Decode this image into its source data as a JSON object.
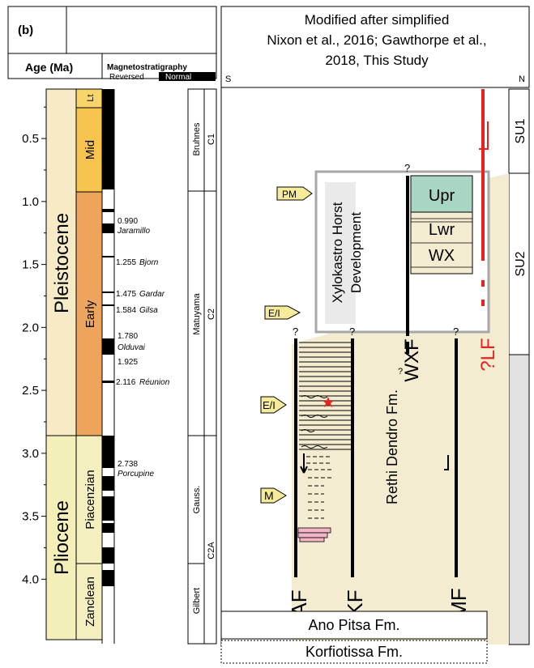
{
  "panel_label": "(b)",
  "header": {
    "age_label": "Age (Ma)",
    "magneto_label": "Magnetostratigraphy",
    "reversed_label": "Reversed",
    "normal_label": "Normal",
    "source_lines": [
      "Modified after simplified",
      "Nixon et al., 2016; Gawthorpe et al.,",
      "2018, This Study"
    ],
    "south_label": "S",
    "north_label": "N"
  },
  "age_ticks": [
    "0.5",
    "1.0",
    "1.5",
    "2.0",
    "2.5",
    "3.0",
    "3.5",
    "4.0"
  ],
  "epochs": {
    "pleistocene": "Pleistocene",
    "pliocene": "Pliocene"
  },
  "stages": {
    "lt": "Lt",
    "mid": "Mid",
    "early": "Early",
    "piacenzian": "Piacenzian",
    "zanclean": "Zanclean"
  },
  "chron_events": [
    {
      "age": "0.990",
      "name": "Jaramillo"
    },
    {
      "age": "1.255",
      "name": "Bjorn"
    },
    {
      "age": "1.475",
      "name": "Gardar"
    },
    {
      "age": "1.584",
      "name": "Gilsa"
    },
    {
      "age": "1.780",
      "name": "Olduvai"
    },
    {
      "age": "1.925",
      "name": ""
    },
    {
      "age": "2.116",
      "name": "Réunion"
    },
    {
      "age": "2.738",
      "name": "Porcupine"
    }
  ],
  "chrons": {
    "bruhnes": "Bruhnes",
    "c1": "C1",
    "matuyama": "Matuyama",
    "c2": "C2",
    "gauss": "Gauss.",
    "c2a": "C2A",
    "gilbert": "Gilbert"
  },
  "faults": {
    "af": "AF",
    "kf": "KF",
    "mf": "MF",
    "wxf": "WXF",
    "lf": "?LF"
  },
  "formations": {
    "rethi": "Rethi Dendro Fm.",
    "ano_pitsa": "Ano Pitsa Fm.",
    "korfiotissa": "Korfiotissa Fm."
  },
  "units": {
    "upr": "Upr",
    "lwr": "Lwr",
    "wx": "WX",
    "su1": "SU1",
    "su2": "SU2"
  },
  "xylokastro_lines": [
    "Xylokastro Horst",
    "Development"
  ],
  "environment_arrows": [
    "PM",
    "E/I",
    "E/I",
    "M"
  ],
  "question_mark": "?",
  "colors": {
    "pleistocene": "#f7ebc7",
    "pliocene": "#f3efb8",
    "late": "#f8d46a",
    "mid": "#f7c450",
    "early": "#eda45c",
    "piacenzian": "#f4efbf",
    "zanclean": "#f4efbf",
    "upr": "#a8d6c3",
    "fill": "#f3ecd0",
    "lf": "#e8231f",
    "su2_grey": "#e1e1e1",
    "box": "#a7a7a7",
    "arrow_fill": "#f5eb9a"
  }
}
